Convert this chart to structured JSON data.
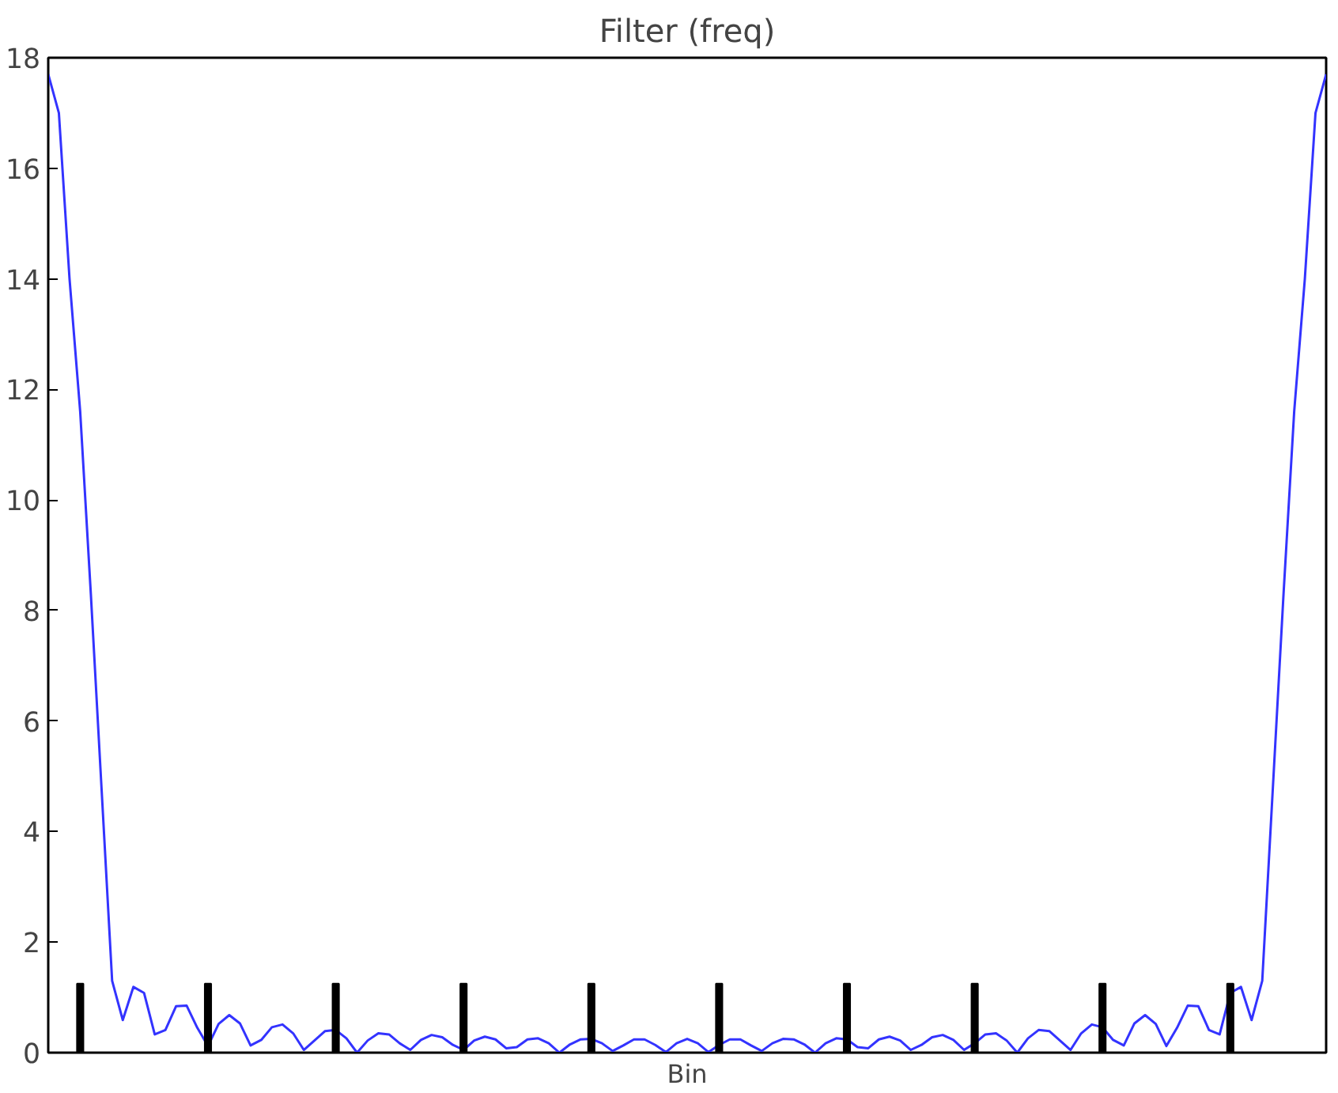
{
  "chart_data": {
    "type": "line",
    "title": "Filter (freq)",
    "xlabel": "Bin",
    "categories": [
      null,
      null,
      null,
      null,
      null,
      null,
      null,
      null,
      null,
      null,
      null,
      null,
      null,
      null,
      null,
      null,
      null,
      null,
      null,
      null,
      null,
      null,
      null,
      null,
      null,
      null,
      null,
      null,
      null,
      null,
      null,
      null,
      null,
      null,
      null,
      null,
      null,
      null,
      null,
      null,
      null,
      null,
      null,
      null,
      null,
      null,
      null,
      null,
      null,
      null,
      null,
      null,
      null,
      null,
      null,
      null,
      null,
      null,
      null,
      null,
      null,
      null,
      null,
      null,
      null,
      null,
      null,
      null,
      null,
      null,
      null,
      null,
      null,
      null,
      null,
      null,
      null,
      null,
      null,
      null,
      null,
      null,
      null,
      null,
      null,
      null,
      null,
      null,
      null,
      null,
      null,
      null,
      null,
      null,
      null,
      null,
      null,
      null,
      null,
      null,
      null,
      null,
      null,
      null,
      null,
      null,
      null,
      null,
      null,
      null,
      null,
      null,
      null,
      null,
      null,
      null,
      null,
      null,
      null,
      null,
      null
    ],
    "series": [
      {
        "color": "#3333ff",
        "values": [
          17.7,
          17.0,
          14.0,
          11.6,
          8.3,
          4.8,
          1.3,
          0.59,
          1.19,
          1.08,
          0.33,
          0.41,
          0.84,
          0.85,
          0.45,
          0.12,
          0.52,
          0.68,
          0.53,
          0.13,
          0.23,
          0.46,
          0.51,
          0.35,
          0.05,
          0.22,
          0.39,
          0.41,
          0.26,
          0.0,
          0.22,
          0.35,
          0.33,
          0.17,
          0.05,
          0.23,
          0.32,
          0.28,
          0.14,
          0.05,
          0.22,
          0.29,
          0.24,
          0.08,
          0.1,
          0.24,
          0.26,
          0.17,
          0.0,
          0.15,
          0.24,
          0.25,
          0.17,
          0.03,
          0.13,
          0.24,
          0.24,
          0.14,
          0.01,
          0.17,
          0.25,
          0.17,
          0.01,
          0.14,
          0.24,
          0.24,
          0.13,
          0.03,
          0.17,
          0.25,
          0.24,
          0.15,
          0.0,
          0.17,
          0.26,
          0.24,
          0.1,
          0.08,
          0.24,
          0.29,
          0.22,
          0.05,
          0.14,
          0.28,
          0.32,
          0.23,
          0.05,
          0.17,
          0.33,
          0.35,
          0.22,
          0.0,
          0.26,
          0.41,
          0.39,
          0.22,
          0.05,
          0.35,
          0.51,
          0.46,
          0.23,
          0.13,
          0.53,
          0.68,
          0.52,
          0.12,
          0.45,
          0.85,
          0.84,
          0.41,
          0.33,
          1.08,
          1.19,
          0.59,
          1.3,
          4.8,
          8.3,
          11.6,
          14.0,
          17.0,
          17.7
        ]
      },
      {
        "type": "bar",
        "color": "#000000",
        "values": [
          null,
          null,
          null,
          1.25,
          null,
          null,
          null,
          null,
          null,
          null,
          null,
          null,
          null,
          null,
          null,
          1.25,
          null,
          null,
          null,
          null,
          null,
          null,
          null,
          null,
          null,
          null,
          null,
          1.25,
          null,
          null,
          null,
          null,
          null,
          null,
          null,
          null,
          null,
          null,
          null,
          1.25,
          null,
          null,
          null,
          null,
          null,
          null,
          null,
          null,
          null,
          null,
          null,
          1.25,
          null,
          null,
          null,
          null,
          null,
          null,
          null,
          null,
          null,
          null,
          null,
          1.25,
          null,
          null,
          null,
          null,
          null,
          null,
          null,
          null,
          null,
          null,
          null,
          1.25,
          null,
          null,
          null,
          null,
          null,
          null,
          null,
          null,
          null,
          null,
          null,
          1.25,
          null,
          null,
          null,
          null,
          null,
          null,
          null,
          null,
          null,
          null,
          null,
          1.25,
          null,
          null,
          null,
          null,
          null,
          null,
          null,
          null,
          null,
          null,
          null,
          1.25,
          null,
          null,
          null,
          null,
          null,
          null,
          null,
          null,
          null
        ]
      }
    ],
    "ylim": [
      0,
      18
    ],
    "yticks": [
      0,
      2,
      4,
      6,
      8,
      10,
      12,
      14,
      16,
      18
    ],
    "tick_labels": "y",
    "grid": false
  }
}
